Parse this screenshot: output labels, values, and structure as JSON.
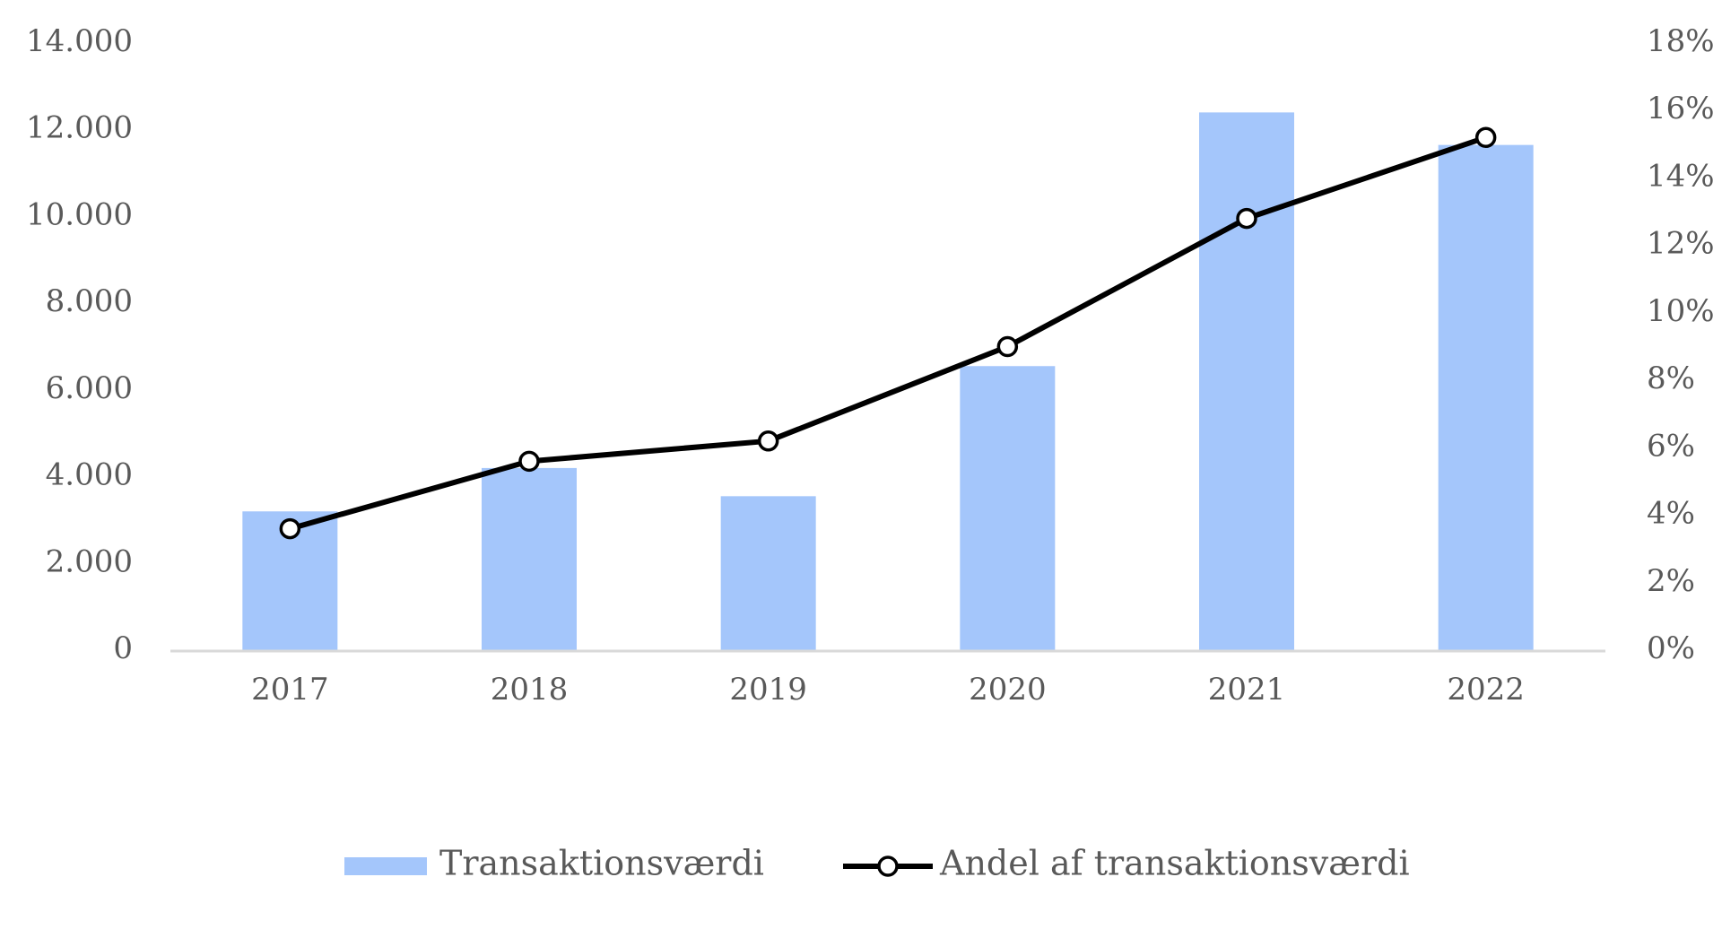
{
  "chart_data": {
    "type": "bar",
    "categories": [
      "2017",
      "2018",
      "2019",
      "2020",
      "2021",
      "2022"
    ],
    "series": [
      {
        "name": "Transaktionsværdi",
        "type": "bar",
        "axis": "left",
        "values": [
          3200,
          4200,
          3550,
          6550,
          12400,
          11650
        ],
        "color": "#a4c6fb"
      },
      {
        "name": "Andel af transaktionsværdi",
        "type": "line",
        "axis": "right",
        "unit": "%",
        "values": [
          3.6,
          5.6,
          6.2,
          9.0,
          12.8,
          15.2
        ],
        "color": "#000000",
        "marker_fill": "#ffffff"
      }
    ],
    "left_axis": {
      "ylim": [
        0,
        14000
      ],
      "ticks": [
        0,
        2000,
        4000,
        6000,
        8000,
        10000,
        12000,
        14000
      ],
      "tick_labels": [
        "0",
        "2.000",
        "4.000",
        "6.000",
        "8.000",
        "10.000",
        "12.000",
        "14.000"
      ]
    },
    "right_axis": {
      "ylim": [
        0,
        18
      ],
      "ticks": [
        0,
        2,
        4,
        6,
        8,
        10,
        12,
        14,
        16,
        18
      ],
      "tick_labels": [
        "0%",
        "2%",
        "4%",
        "6%",
        "8%",
        "10%",
        "12%",
        "14%",
        "16%",
        "18%"
      ]
    },
    "title": "",
    "xlabel": "",
    "ylabel": "",
    "grid": false,
    "legend_position": "bottom-center",
    "axis_line_color": "#d9d9d9",
    "text_color": "#595959"
  }
}
